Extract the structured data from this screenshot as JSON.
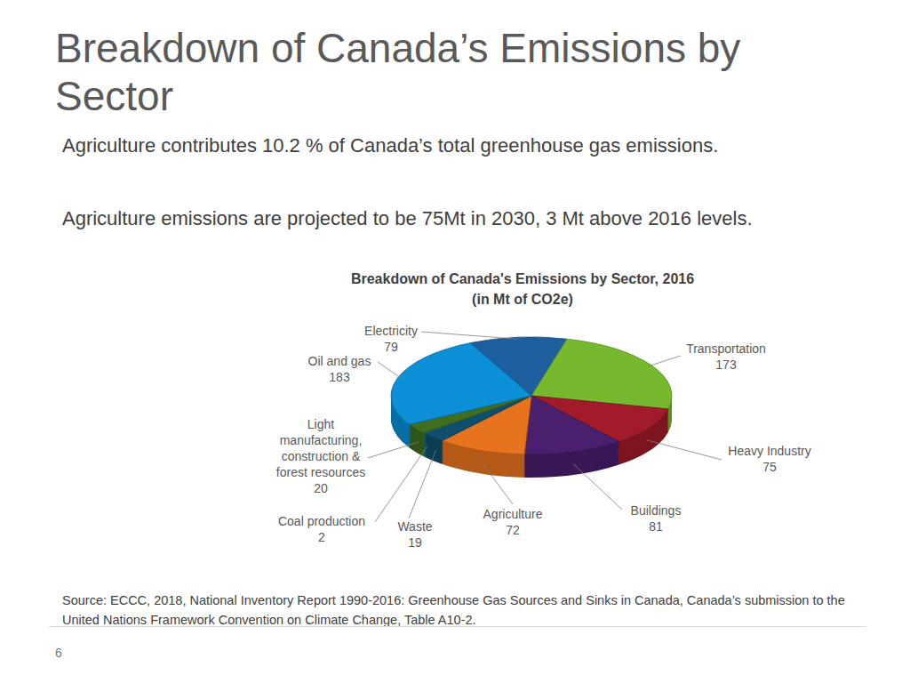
{
  "heading": "Breakdown of Canada’s Emissions by Sector",
  "bullets": [
    "Agriculture contributes 10.2 % of Canada’s total greenhouse gas emissions.",
    "Agriculture emissions are projected to be 75Mt in 2030, 3 Mt above 2016 levels."
  ],
  "source": "Source: ECCC, 2018, National Inventory Report 1990-2016: Greenhouse Gas Sources and Sinks in Canada, Canada’s submission to the United Nations Framework Convention on Climate Change, Table A10-2.",
  "page_number": 6,
  "chart_data": {
    "type": "pie",
    "title": "Breakdown of Canada's Emissions by Sector, 2016",
    "subtitle": "(in Mt of CO2e)",
    "categories": [
      "Electricity",
      "Transportation",
      "Heavy Industry",
      "Buildings",
      "Agriculture",
      "Waste",
      "Coal production",
      "Light manufacturing, construction & forest resources",
      "Oil and gas"
    ],
    "values": [
      79,
      173,
      75,
      81,
      72,
      19,
      2,
      20,
      183
    ],
    "colors": [
      "#1d5e9e",
      "#76b82e",
      "#a11b2b",
      "#4a1f6e",
      "#e8731f",
      "#0f4f6e",
      "#1b6e8a",
      "#3f6e1f",
      "#0b8fd6"
    ],
    "data_labels": true
  }
}
